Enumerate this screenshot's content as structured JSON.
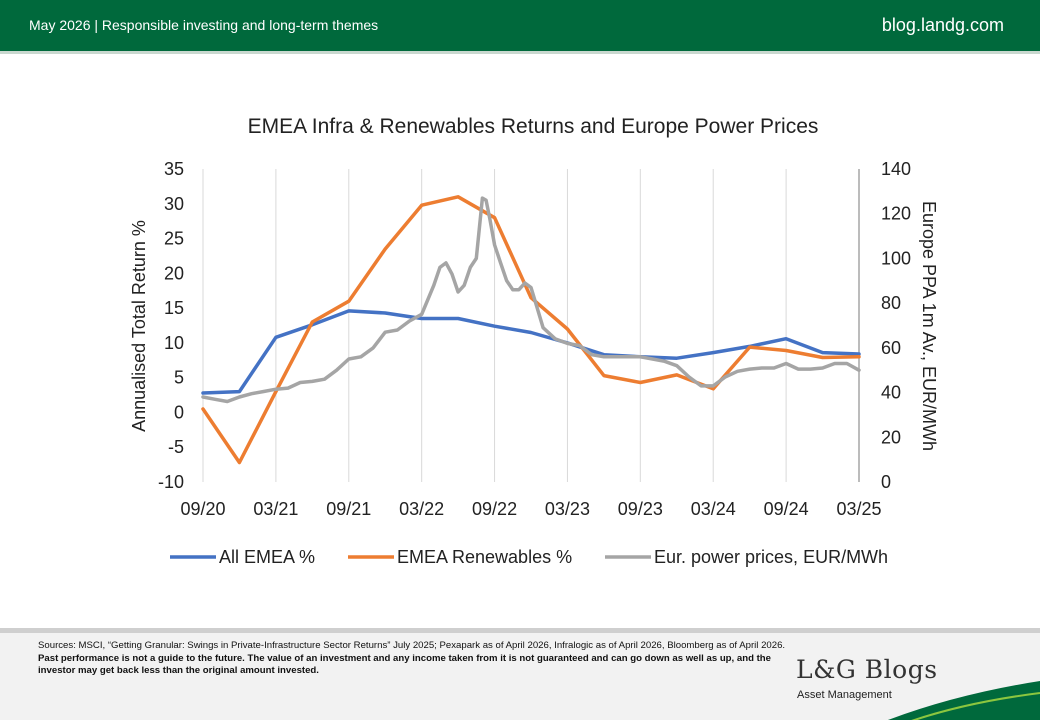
{
  "header": {
    "left_text": "May 2026 | Responsible investing and long-term themes",
    "right_text": "blog.landg.com"
  },
  "footer": {
    "sources_text": "Sources: MSCI, “Getting Granular: Swings in Private-Infrastructure Sector Returns” July 2025; Pexapark as of April 2026, Infralogic as of April 2026, Bloomberg as of April 2026.",
    "disclaimer_text": "Past performance is not a guide to the future. The value of an investment and any income taken from it is not guaranteed and can go down as well as up, and the investor may get back less than the original amount invested.",
    "logo_text": "L&G Blogs",
    "logo_subtext": "Asset Management"
  },
  "colors": {
    "header_green": "#00693c",
    "all_emea": "#4472c4",
    "renewables": "#ed7d31",
    "power": "#a5a5a5"
  },
  "chart_data": {
    "type": "line",
    "title": "EMEA Infra & Renewables Returns and Europe Power Prices",
    "ylabel": "Annualised Total Return %",
    "y2label": "Europe PPA  1m Av., EUR/MWh",
    "ylim": [
      -10,
      35
    ],
    "y2lim": [
      0,
      140
    ],
    "yticks": [
      35,
      30,
      25,
      20,
      15,
      10,
      5,
      0,
      -5,
      -10
    ],
    "y2ticks": [
      140,
      120,
      100,
      80,
      60,
      40,
      20,
      0
    ],
    "xlim": [
      0,
      54
    ],
    "xticks": [
      {
        "x": 0,
        "label": "09/20"
      },
      {
        "x": 6,
        "label": "03/21"
      },
      {
        "x": 12,
        "label": "09/21"
      },
      {
        "x": 18,
        "label": "03/22"
      },
      {
        "x": 24,
        "label": "09/22"
      },
      {
        "x": 30,
        "label": "03/23"
      },
      {
        "x": 36,
        "label": "09/23"
      },
      {
        "x": 42,
        "label": "03/24"
      },
      {
        "x": 48,
        "label": "09/24"
      },
      {
        "x": 54,
        "label": "03/25"
      }
    ],
    "grid": "vertical",
    "legend_position": "bottom",
    "series": [
      {
        "name": "All EMEA %",
        "axis": "left",
        "x": [
          0,
          3,
          6,
          9,
          12,
          15,
          18,
          21,
          24,
          27,
          30,
          33,
          36,
          39,
          42,
          45,
          48,
          51,
          54
        ],
        "y": [
          2.8,
          3.0,
          10.8,
          12.6,
          14.6,
          14.3,
          13.5,
          13.5,
          12.4,
          11.5,
          10.0,
          8.3,
          8.0,
          7.8,
          8.6,
          9.5,
          10.6,
          8.6,
          8.4
        ]
      },
      {
        "name": "EMEA Renewables %",
        "axis": "left",
        "x": [
          0,
          3,
          6,
          9,
          12,
          15,
          18,
          21,
          24,
          27,
          30,
          33,
          36,
          39,
          42,
          45,
          48,
          51,
          54
        ],
        "y": [
          0.5,
          -7.2,
          3.0,
          13.0,
          16.0,
          23.5,
          29.8,
          31.0,
          28.0,
          16.5,
          12.0,
          5.3,
          4.3,
          5.4,
          3.4,
          9.4,
          8.9,
          7.9,
          8.0
        ]
      },
      {
        "name": "Eur. power prices, EUR/MWh",
        "axis": "right",
        "x": [
          0,
          1,
          2,
          3,
          4,
          5,
          6,
          7,
          8,
          9,
          10,
          11,
          12,
          13,
          14,
          15,
          16,
          17,
          18,
          19,
          19.5,
          20,
          20.5,
          21,
          21.5,
          22,
          22.5,
          23,
          23.3,
          23.6,
          24,
          24.5,
          25,
          25.5,
          26,
          26.5,
          27,
          27.5,
          28,
          29,
          30,
          31,
          32,
          33,
          34,
          35,
          36,
          37,
          38,
          39,
          40,
          41,
          42,
          43,
          44,
          45,
          46,
          47,
          48,
          49,
          50,
          51,
          52,
          53,
          54
        ],
        "y": [
          38,
          37,
          36,
          38,
          39.5,
          40.5,
          41.5,
          42,
          44.5,
          45,
          46,
          50,
          55,
          56,
          60,
          67,
          68,
          72,
          75,
          88,
          96,
          98,
          93,
          85,
          88,
          96,
          100,
          127,
          126,
          118,
          106,
          98,
          90,
          86,
          86,
          89,
          87,
          78,
          69,
          64,
          62,
          61,
          57,
          56,
          56,
          56,
          56,
          55,
          54,
          52,
          47,
          43,
          43,
          47,
          49.5,
          50.5,
          51,
          51,
          53,
          50.5,
          50.5,
          51,
          53,
          53,
          50
        ]
      }
    ]
  }
}
